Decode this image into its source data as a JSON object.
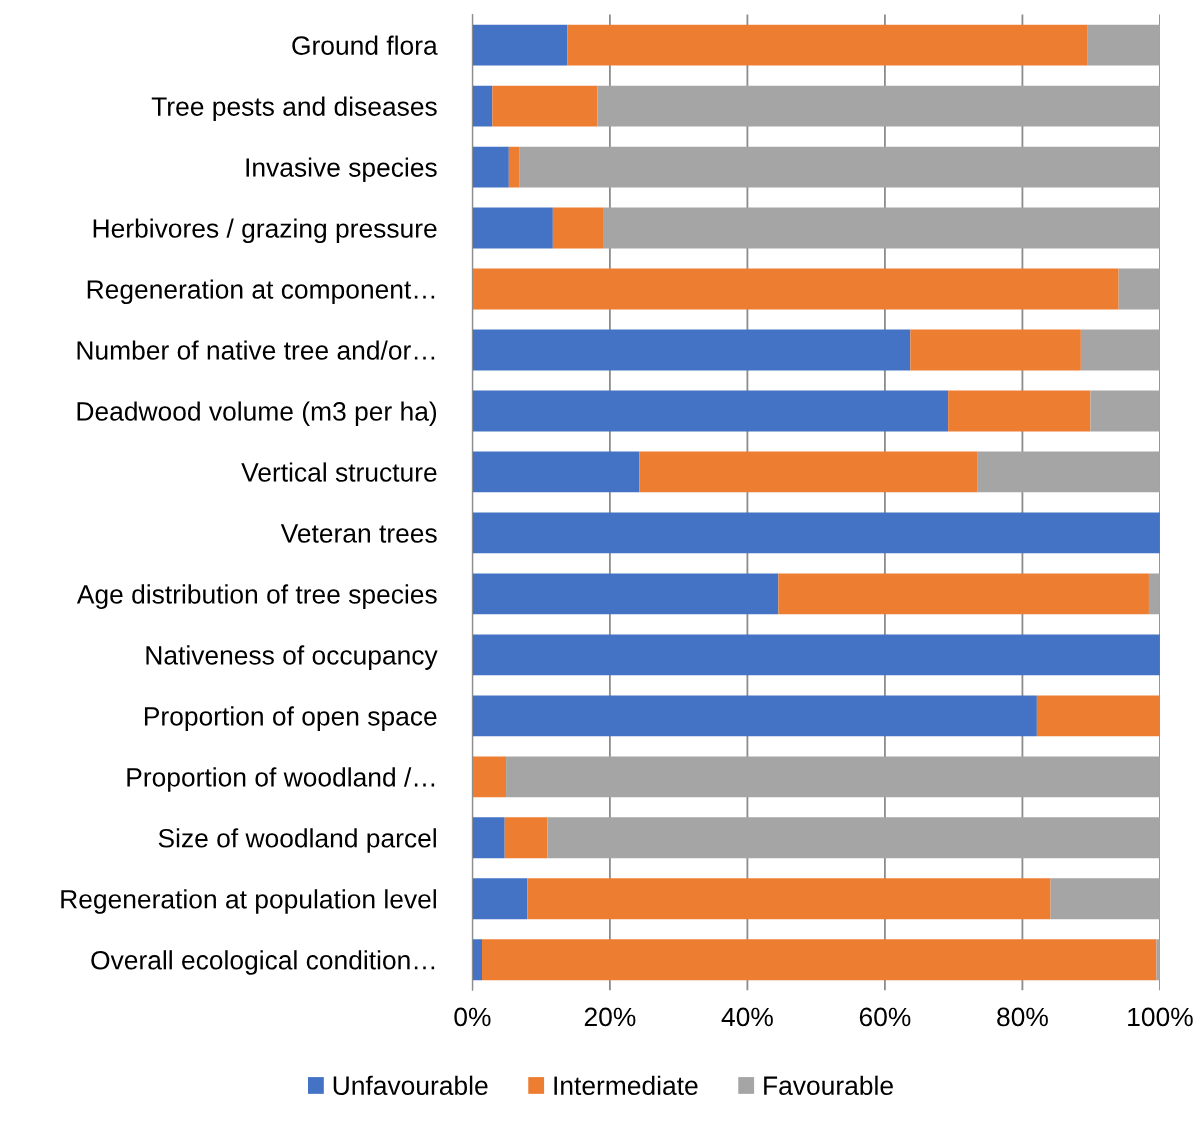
{
  "chart_data": {
    "type": "bar",
    "orientation": "horizontal",
    "stacked": true,
    "categories": [
      "Ground flora",
      "Tree pests and diseases",
      "Invasive species",
      "Herbivores / grazing pressure",
      "Regeneration at component…",
      "Number of native tree and/or…",
      "Deadwood volume (m3 per ha)",
      "Vertical structure",
      "Veteran trees",
      "Age distribution of tree species",
      "Nativeness of occupancy",
      "Proportion of open space",
      "Proportion of woodland /…",
      "Size of woodland parcel",
      "Regeneration at population level",
      "Overall ecological condition…"
    ],
    "series": [
      {
        "name": "Unfavourable",
        "color": "#4472c4",
        "values": [
          13.8,
          2.9,
          5.3,
          11.7,
          0,
          63.7,
          69.2,
          24.3,
          100,
          44.5,
          100,
          82.1,
          0,
          4.7,
          8.0,
          1.4
        ]
      },
      {
        "name": "Intermediate",
        "color": "#ed7d31",
        "values": [
          75.7,
          15.3,
          1.5,
          7.3,
          94.0,
          24.8,
          20.7,
          49.2,
          0,
          53.9,
          0,
          17.9,
          4.9,
          6.2,
          76.1,
          98.1
        ]
      },
      {
        "name": "Favourable",
        "color": "#a5a5a5",
        "values": [
          10.5,
          81.8,
          93.2,
          81.0,
          6.0,
          11.5,
          10.1,
          26.5,
          0,
          1.6,
          0,
          0,
          95.1,
          89.1,
          15.9,
          0.5
        ]
      }
    ],
    "xlim": [
      0,
      100
    ],
    "xticks": [
      {
        "value": 0,
        "label": "0%"
      },
      {
        "value": 20,
        "label": "20%"
      },
      {
        "value": 40,
        "label": "40%"
      },
      {
        "value": 60,
        "label": "60%"
      },
      {
        "value": 80,
        "label": "80%"
      },
      {
        "value": 100,
        "label": "100%"
      }
    ],
    "grid": "x",
    "legend": "bottom"
  }
}
